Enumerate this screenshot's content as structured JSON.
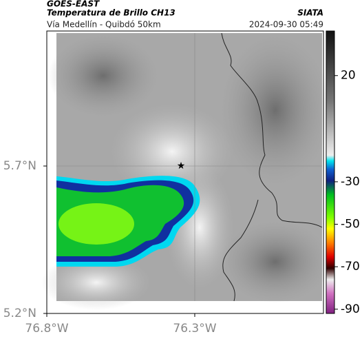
{
  "header": {
    "source": "GOES-EAST",
    "title": "Temperatura de Brillo CH13",
    "subtitle": "Vía Medellín - Quibdó 50km",
    "agency": "SIATA",
    "datetime": "2024-09-30 05:49"
  },
  "map": {
    "latlim": [
      5.2,
      6.158
    ],
    "lonlim": [
      -76.8,
      -75.865
    ],
    "lat_ticks": [
      {
        "value": 5.7,
        "label": "5.7°N"
      },
      {
        "value": 5.2,
        "label": "5.2°N"
      }
    ],
    "lon_ticks": [
      {
        "value": -76.8,
        "label": "76.8°W"
      },
      {
        "value": -76.3,
        "label": "76.3°W"
      }
    ]
  },
  "colorbar": {
    "clim": [
      41,
      -92
    ],
    "ticks": [
      20,
      -30,
      -50,
      -70,
      -90
    ]
  }
}
